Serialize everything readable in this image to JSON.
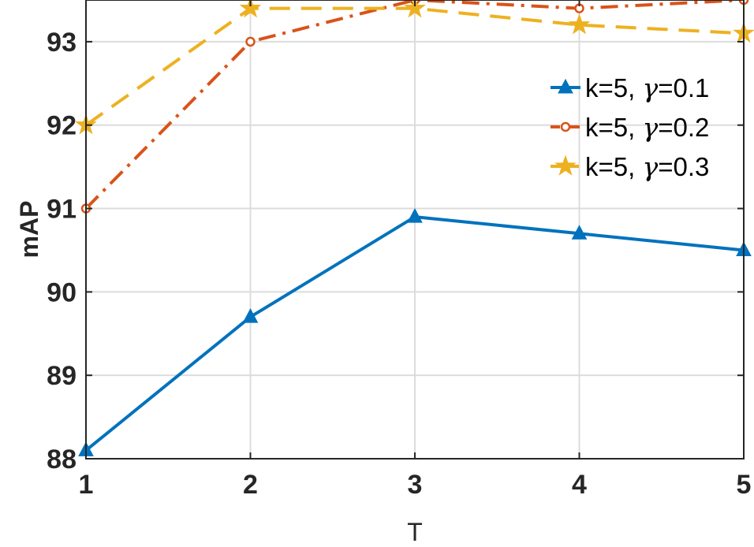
{
  "chart_data": {
    "type": "line",
    "title": "",
    "xlabel": "T",
    "ylabel": "mAP",
    "x": [
      1,
      2,
      3,
      4,
      5
    ],
    "xlim": [
      1,
      5
    ],
    "ylim": [
      88,
      93.5
    ],
    "xticks": [
      "1",
      "2",
      "3",
      "4",
      "5"
    ],
    "yticks": [
      "88",
      "89",
      "90",
      "91",
      "92",
      "93"
    ],
    "grid": true,
    "legend_position": "top-right",
    "series": [
      {
        "name": "k=5, ",
        "name_symbol": "γ",
        "name_value": "=0.1",
        "values": [
          88.1,
          89.7,
          90.9,
          90.7,
          90.5
        ],
        "color": "#0072BD",
        "line_style": "solid",
        "marker": "triangle"
      },
      {
        "name": "k=5, ",
        "name_symbol": "γ",
        "name_value": "=0.2",
        "values": [
          91.0,
          93.0,
          93.5,
          93.4,
          93.5
        ],
        "color": "#D95319",
        "line_style": "dash-dot",
        "marker": "circle"
      },
      {
        "name": "k=5, ",
        "name_symbol": "γ",
        "name_value": "=0.3",
        "values": [
          92.0,
          93.4,
          93.4,
          93.2,
          93.1
        ],
        "color": "#EDB120",
        "line_style": "dashed",
        "marker": "star"
      }
    ]
  }
}
